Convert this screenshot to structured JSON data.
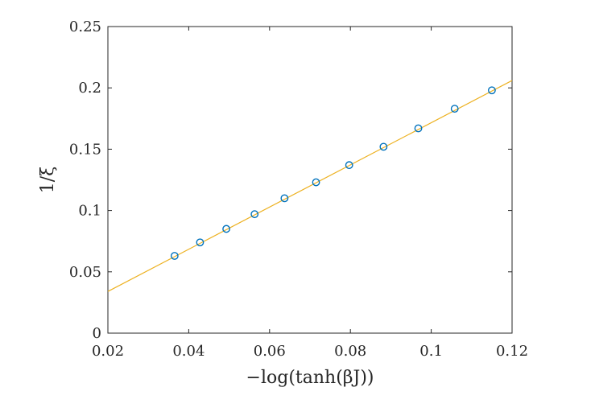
{
  "chart_data": {
    "type": "scatter",
    "title": "",
    "xlabel": "−log(tanh(βJ))",
    "ylabel": "1/ξ",
    "xlim": [
      0.02,
      0.12
    ],
    "ylim": [
      0,
      0.25
    ],
    "xticks": [
      0.02,
      0.04,
      0.06,
      0.08,
      0.1,
      0.12
    ],
    "xtick_labels": [
      "0.02",
      "0.04",
      "0.06",
      "0.08",
      "0.1",
      "0.12"
    ],
    "yticks": [
      0,
      0.05,
      0.1,
      0.15,
      0.2,
      0.25
    ],
    "ytick_labels": [
      "0",
      "0.05",
      "0.1",
      "0.15",
      "0.2",
      "0.25"
    ],
    "grid": false,
    "box": true,
    "points": {
      "marker": "open-circle",
      "color": "#0072BD",
      "x": [
        0.0365,
        0.0428,
        0.0493,
        0.0563,
        0.0637,
        0.0715,
        0.0797,
        0.0882,
        0.0968,
        0.1058,
        0.115
      ],
      "y": [
        0.063,
        0.074,
        0.085,
        0.097,
        0.11,
        0.123,
        0.137,
        0.152,
        0.167,
        0.183,
        0.198
      ]
    },
    "fit_line": {
      "type": "line",
      "color": "#EDB120",
      "x": [
        0.02,
        0.12
      ],
      "y": [
        0.034,
        0.206
      ]
    }
  }
}
